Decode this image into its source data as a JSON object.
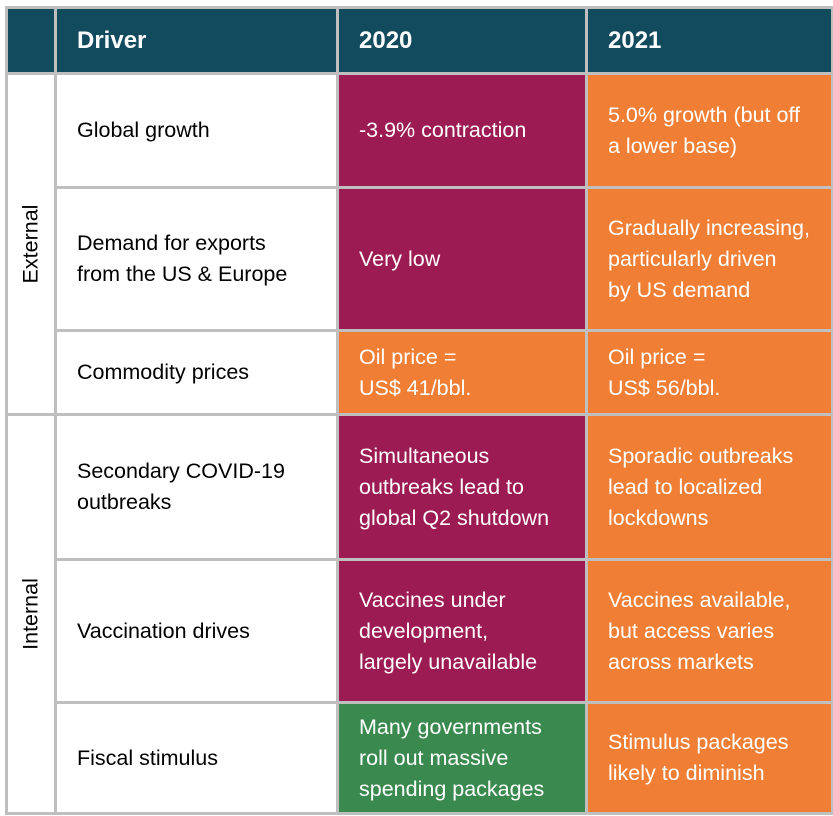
{
  "header": {
    "driver": "Driver",
    "year1": "2020",
    "year2": "2021"
  },
  "groups": {
    "external": "External",
    "internal": "Internal"
  },
  "rows": [
    {
      "driver": "Global growth",
      "y2020": "-3.9% contraction",
      "y2021": "5.0% growth (but off\na lower base)",
      "color2020": "#9b1b52",
      "color2021": "#f07f35"
    },
    {
      "driver": "Demand for exports\nfrom the US & Europe",
      "y2020": "Very low",
      "y2021": "Gradually increasing,\nparticularly driven\nby US demand",
      "color2020": "#9b1b52",
      "color2021": "#f07f35"
    },
    {
      "driver": "Commodity prices",
      "y2020": "Oil price =\nUS$ 41/bbl.",
      "y2021": "Oil price =\nUS$ 56/bbl.",
      "color2020": "#f07f35",
      "color2021": "#f07f35"
    },
    {
      "driver": "Secondary COVID-19\noutbreaks",
      "y2020": "Simultaneous\noutbreaks lead to\nglobal Q2 shutdown",
      "y2021": "Sporadic outbreaks\nlead to localized\nlockdowns",
      "color2020": "#9b1b52",
      "color2021": "#f07f35"
    },
    {
      "driver": "Vaccination drives",
      "y2020": "Vaccines under\ndevelopment,\nlargely unavailable",
      "y2021": "Vaccines available,\nbut access varies\nacross markets",
      "color2020": "#9b1b52",
      "color2021": "#f07f35"
    },
    {
      "driver": "Fiscal stimulus",
      "y2020": "Many governments\nroll out massive\nspending packages",
      "y2021": "Stimulus packages\nlikely to diminish",
      "color2020": "#3a8a4f",
      "color2021": "#f07f35"
    }
  ]
}
